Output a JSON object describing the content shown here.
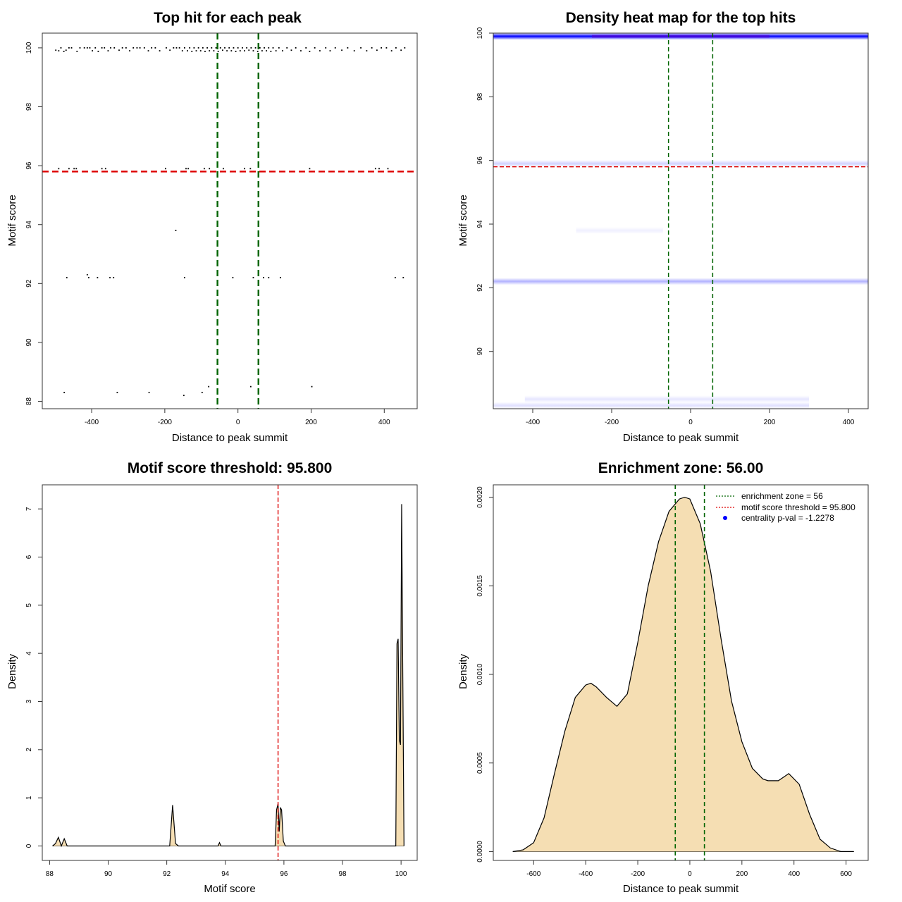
{
  "colors": {
    "green": "#006400",
    "red": "#dd0000",
    "fill": "#f5deb3",
    "heat": "#0000ff",
    "point": "#000000"
  },
  "chart_data": [
    {
      "type": "scatter",
      "title": "Top hit for each peak",
      "xlabel": "Distance to peak summit",
      "ylabel": "Motif score",
      "xlim": [
        -535,
        490
      ],
      "ylim": [
        87.75,
        100.5
      ],
      "xticks": [
        -400,
        -200,
        0,
        200,
        400
      ],
      "yticks": [
        88,
        90,
        92,
        94,
        96,
        98,
        100
      ],
      "vlines": [
        -56,
        56
      ],
      "hline": 95.8,
      "points": [
        [
          -498,
          99.92
        ],
        [
          -490,
          99.9
        ],
        [
          -484,
          100
        ],
        [
          -476,
          99.88
        ],
        [
          -470,
          99.92
        ],
        [
          -462,
          100
        ],
        [
          -455,
          100
        ],
        [
          -440,
          99.88
        ],
        [
          -432,
          100
        ],
        [
          -420,
          100
        ],
        [
          -412,
          100
        ],
        [
          -405,
          100
        ],
        [
          -398,
          99.9
        ],
        [
          -390,
          100
        ],
        [
          -382,
          99.88
        ],
        [
          -372,
          100
        ],
        [
          -365,
          100
        ],
        [
          -355,
          99.9
        ],
        [
          -348,
          100
        ],
        [
          -338,
          100
        ],
        [
          -325,
          99.92
        ],
        [
          -316,
          100
        ],
        [
          -306,
          100
        ],
        [
          -296,
          99.9
        ],
        [
          -286,
          100
        ],
        [
          -276,
          100
        ],
        [
          -268,
          100
        ],
        [
          -256,
          100
        ],
        [
          -245,
          99.9
        ],
        [
          -236,
          100
        ],
        [
          -226,
          100
        ],
        [
          -214,
          99.9
        ],
        [
          -196,
          100
        ],
        [
          -186,
          99.92
        ],
        [
          -176,
          100
        ],
        [
          -168,
          100
        ],
        [
          -160,
          100
        ],
        [
          -152,
          99.9
        ],
        [
          -146,
          100
        ],
        [
          -138,
          99.9
        ],
        [
          -132,
          100
        ],
        [
          -126,
          99.88
        ],
        [
          -120,
          100
        ],
        [
          -114,
          99.9
        ],
        [
          -108,
          100
        ],
        [
          -102,
          99.9
        ],
        [
          -96,
          100
        ],
        [
          -90,
          99.88
        ],
        [
          -84,
          100
        ],
        [
          -78,
          99.9
        ],
        [
          -72,
          100
        ],
        [
          -66,
          99.9
        ],
        [
          -60,
          100
        ],
        [
          -54,
          99.88
        ],
        [
          -48,
          100
        ],
        [
          -42,
          99.92
        ],
        [
          -36,
          100
        ],
        [
          -30,
          99.9
        ],
        [
          -24,
          100
        ],
        [
          -18,
          99.9
        ],
        [
          -12,
          100
        ],
        [
          -6,
          99.88
        ],
        [
          0,
          100
        ],
        [
          6,
          99.9
        ],
        [
          12,
          100
        ],
        [
          18,
          99.9
        ],
        [
          24,
          100
        ],
        [
          30,
          99.92
        ],
        [
          36,
          100
        ],
        [
          42,
          99.9
        ],
        [
          48,
          100
        ],
        [
          54,
          99.88
        ],
        [
          60,
          100
        ],
        [
          66,
          99.9
        ],
        [
          72,
          100
        ],
        [
          78,
          99.9
        ],
        [
          84,
          100
        ],
        [
          90,
          99.88
        ],
        [
          96,
          100
        ],
        [
          104,
          99.9
        ],
        [
          112,
          100
        ],
        [
          122,
          99.9
        ],
        [
          134,
          100
        ],
        [
          146,
          99.92
        ],
        [
          158,
          100
        ],
        [
          172,
          99.9
        ],
        [
          186,
          100
        ],
        [
          196,
          99.88
        ],
        [
          210,
          100
        ],
        [
          224,
          99.9
        ],
        [
          240,
          100
        ],
        [
          252,
          99.9
        ],
        [
          266,
          100
        ],
        [
          284,
          99.92
        ],
        [
          300,
          100
        ],
        [
          318,
          99.9
        ],
        [
          336,
          100
        ],
        [
          352,
          99.9
        ],
        [
          366,
          100
        ],
        [
          380,
          99.92
        ],
        [
          392,
          100
        ],
        [
          406,
          100
        ],
        [
          420,
          99.9
        ],
        [
          432,
          100
        ],
        [
          446,
          99.92
        ],
        [
          456,
          100
        ],
        [
          -490,
          95.9
        ],
        [
          -462,
          95.9
        ],
        [
          -448,
          95.9
        ],
        [
          -442,
          95.9
        ],
        [
          -372,
          95.9
        ],
        [
          -362,
          95.9
        ],
        [
          -198,
          95.9
        ],
        [
          -142,
          95.9
        ],
        [
          -136,
          95.9
        ],
        [
          -92,
          95.9
        ],
        [
          -78,
          95.9
        ],
        [
          -40,
          95.9
        ],
        [
          18,
          95.9
        ],
        [
          34,
          95.9
        ],
        [
          196,
          95.9
        ],
        [
          376,
          95.9
        ],
        [
          386,
          95.9
        ],
        [
          410,
          95.9
        ],
        [
          -170,
          93.8
        ],
        [
          -468,
          92.2
        ],
        [
          -412,
          92.3
        ],
        [
          -408,
          92.2
        ],
        [
          -384,
          92.2
        ],
        [
          -350,
          92.2
        ],
        [
          -340,
          92.2
        ],
        [
          -146,
          92.2
        ],
        [
          -14,
          92.2
        ],
        [
          42,
          92.2
        ],
        [
          70,
          92.2
        ],
        [
          84,
          92.2
        ],
        [
          116,
          92.2
        ],
        [
          430,
          92.2
        ],
        [
          452,
          92.2
        ],
        [
          -475,
          88.3
        ],
        [
          -330,
          88.3
        ],
        [
          -243,
          88.3
        ],
        [
          -148,
          88.2
        ],
        [
          -98,
          88.3
        ],
        [
          -80,
          88.5
        ],
        [
          35,
          88.5
        ],
        [
          202,
          88.5
        ]
      ]
    },
    {
      "type": "heatmap",
      "title": "Density heat map for the top hits",
      "xlabel": "Distance to peak summit",
      "ylabel": "Motif score",
      "xlim": [
        -500,
        450
      ],
      "ylim": [
        88.2,
        100
      ],
      "xticks": [
        -400,
        -200,
        0,
        200,
        400
      ],
      "yticks": [
        90,
        92,
        94,
        96,
        98,
        100
      ],
      "vlines": [
        -56,
        56
      ],
      "hline": 95.8,
      "bands": [
        {
          "y": 99.9,
          "x": [
            -500,
            450
          ],
          "intensity": 1.0
        },
        {
          "y": 95.9,
          "x": [
            -500,
            450
          ],
          "intensity": 0.18
        },
        {
          "y": 92.2,
          "x": [
            -500,
            450
          ],
          "intensity": 0.3
        },
        {
          "y": 93.8,
          "x": [
            -290,
            -70
          ],
          "intensity": 0.06
        },
        {
          "y": 88.5,
          "x": [
            -420,
            300
          ],
          "intensity": 0.1
        },
        {
          "y": 88.3,
          "x": [
            -500,
            300
          ],
          "intensity": 0.12
        }
      ]
    },
    {
      "type": "area",
      "title": "Motif score threshold: 95.800",
      "xlabel": "Motif score",
      "ylabel": "Density",
      "xlim": [
        87.75,
        100.55
      ],
      "ylim": [
        -0.3,
        7.5
      ],
      "xticks": [
        88,
        90,
        92,
        94,
        96,
        98,
        100
      ],
      "yticks": [
        0,
        1,
        2,
        3,
        4,
        5,
        6,
        7
      ],
      "vline": 95.8,
      "x": [
        88.1,
        88.2,
        88.3,
        88.4,
        88.5,
        88.6,
        92.1,
        92.2,
        92.3,
        92.4,
        93.75,
        93.8,
        93.85,
        95.7,
        95.75,
        95.8,
        95.84,
        95.88,
        95.92,
        95.98,
        96.05,
        99.82,
        99.86,
        99.9,
        99.94,
        99.98,
        100.02,
        100.06,
        100.1
      ],
      "y": [
        0,
        0.05,
        0.18,
        0,
        0.15,
        0,
        0,
        0.85,
        0.05,
        0,
        0,
        0.07,
        0,
        0,
        0.75,
        0.88,
        0.3,
        0.8,
        0.75,
        0.1,
        0,
        0,
        4.2,
        4.3,
        2.2,
        2.1,
        7.1,
        3.5,
        0
      ]
    },
    {
      "type": "area",
      "title": "Enrichment zone: 56.00",
      "xlabel": "Distance to peak summit",
      "ylabel": "Density",
      "xlim": [
        -755,
        685
      ],
      "ylim": [
        -5e-05,
        0.00207
      ],
      "xticks": [
        -600,
        -400,
        -200,
        0,
        200,
        400,
        600
      ],
      "yticks": [
        0.0,
        0.0005,
        0.001,
        0.0015,
        0.002
      ],
      "ytick_labels": [
        "0.0000",
        "0.0005",
        "0.0010",
        "0.0015",
        "0.0020"
      ],
      "vlines": [
        -56,
        56
      ],
      "x": [
        -680,
        -640,
        -600,
        -560,
        -520,
        -480,
        -440,
        -400,
        -380,
        -360,
        -320,
        -280,
        -240,
        -200,
        -160,
        -120,
        -80,
        -40,
        -20,
        0,
        40,
        80,
        120,
        160,
        200,
        240,
        280,
        300,
        340,
        380,
        420,
        460,
        500,
        540,
        580,
        630
      ],
      "y": [
        0,
        1e-05,
        5e-05,
        0.00019,
        0.00044,
        0.00068,
        0.00087,
        0.00094,
        0.00095,
        0.00093,
        0.00087,
        0.00082,
        0.00089,
        0.00118,
        0.0015,
        0.00175,
        0.00192,
        0.00199,
        0.002,
        0.00199,
        0.00185,
        0.00158,
        0.0012,
        0.00085,
        0.00062,
        0.00047,
        0.00041,
        0.0004,
        0.0004,
        0.00044,
        0.00038,
        0.00021,
        7e-05,
        2e-05,
        0,
        0
      ],
      "legend": {
        "position": "top-right",
        "items": [
          {
            "label": "enrichment zone = 56",
            "style": "green-dotted"
          },
          {
            "label": "motif score threshold = 95.800",
            "style": "red-dotted"
          },
          {
            "label": "centrality p-val = -1.2278",
            "style": "blue-dot"
          }
        ]
      }
    }
  ]
}
